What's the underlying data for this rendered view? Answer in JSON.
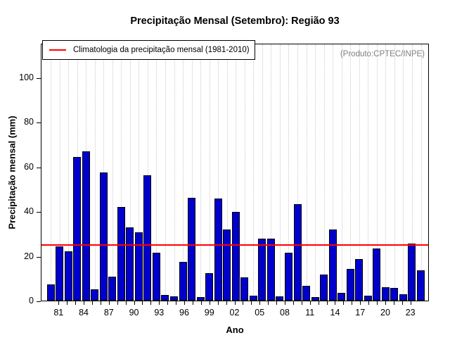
{
  "title": "Precipitação Mensal (Setembro): Região 93",
  "legend": {
    "label": "Climatologia da precipitação mensal (1981-2010)"
  },
  "source_note": "(Produto:CPTEC/INPE)",
  "colors": {
    "bar_fill": "#0000CD",
    "bar_border": "#000000",
    "climatology_line": "#FF0000",
    "grid": "#C9C9C9",
    "source_note_text": "#7F7F7F"
  },
  "chart_data": {
    "type": "bar",
    "title": "Precipitação Mensal (Setembro): Região 93",
    "xlabel": "Ano",
    "ylabel": "Precipitação mensal (mm)",
    "legend_entry": "Climatologia da precipitação mensal (1981-2010)",
    "years": [
      1981,
      1982,
      1983,
      1984,
      1985,
      1986,
      1987,
      1988,
      1989,
      1990,
      1991,
      1992,
      1993,
      1994,
      1995,
      1996,
      1997,
      1998,
      1999,
      2000,
      2001,
      2002,
      2003,
      2004,
      2005,
      2006,
      2007,
      2008,
      2009,
      2010,
      2011,
      2012,
      2013,
      2014,
      2015,
      2016,
      2017,
      2018,
      2019,
      2020,
      2021,
      2022,
      2023
    ],
    "values": [
      7.2,
      24.3,
      22.0,
      64.3,
      66.8,
      5.0,
      57.3,
      10.8,
      42.1,
      32.8,
      30.7,
      56.2,
      21.6,
      2.4,
      1.9,
      17.2,
      46.2,
      1.6,
      12.4,
      45.6,
      31.9,
      39.8,
      10.3,
      2.2,
      27.8,
      27.8,
      1.8,
      21.6,
      43.1,
      6.5,
      1.6,
      11.8,
      32.0,
      3.6,
      14.3,
      18.5,
      2.1,
      23.4,
      6.1,
      5.8,
      2.7,
      25.5,
      13.7
    ],
    "climatology_value": 26,
    "climatology_period": "1981-2010",
    "y_ticks": [
      0,
      20,
      40,
      60,
      80,
      100
    ],
    "x_tick_label_years": [
      1981,
      1984,
      1987,
      1990,
      1993,
      1996,
      1999,
      2002,
      2005,
      2008,
      2011,
      2014,
      2017,
      2020,
      2023
    ],
    "x_tick_labels": [
      "81",
      "84",
      "87",
      "90",
      "93",
      "96",
      "99",
      "02",
      "05",
      "08",
      "11",
      "14",
      "17",
      "20",
      "23"
    ],
    "ylim": [
      0,
      115.3
    ],
    "grid": "vertical-dotted",
    "legend_position": "top-left"
  }
}
